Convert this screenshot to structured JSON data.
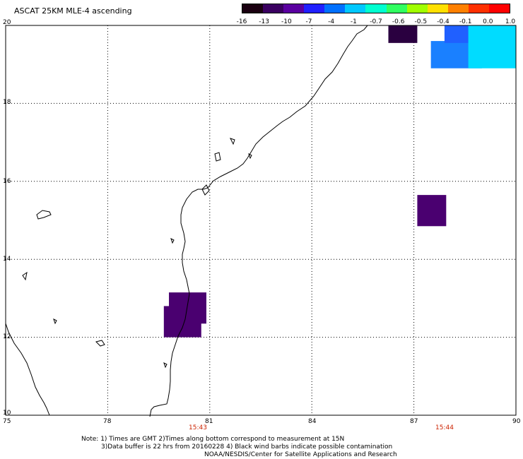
{
  "title": "ASCAT 25KM MLE-4 ascending",
  "colorbar": {
    "labels": [
      "-16",
      "-13",
      "-10",
      "-7",
      "-4",
      "-1",
      "-0.7",
      "-0.6",
      "-0.5",
      "-0.4",
      "-0.1",
      "0.0",
      "1.0"
    ],
    "colors": [
      "#1a0010",
      "#3a0060",
      "#5a00a0",
      "#2020ff",
      "#0070ff",
      "#00c8ff",
      "#00ffd0",
      "#30ff60",
      "#a0ff00",
      "#ffe000",
      "#ff8000",
      "#ff3000",
      "#ff0000"
    ]
  },
  "y_axis": {
    "labels": [
      "20",
      "18",
      "16",
      "14",
      "12",
      "10"
    ]
  },
  "x_axis": {
    "labels": [
      "75",
      "78",
      "81",
      "84",
      "87",
      "90"
    ]
  },
  "pass_times": [
    "15:43",
    "15:44"
  ],
  "note": {
    "line1": "Note: 1) Times are GMT 2)Times along bottom correspond to measurement at 15N",
    "line2": "3)Data buffer is 22 hrs from 20160228 4) Black wind barbs indicate possible contamination",
    "line3": "NOAA/NESDIS/Center for Satellite Applications and Research"
  },
  "data_cells": [
    {
      "name": "purple-patch-north",
      "color": "#2a0040",
      "lon": [
        86.25,
        87.1
      ],
      "lat": [
        19.55,
        20.0
      ]
    },
    {
      "name": "blue-patch-ne-1",
      "color": "#1a80ff",
      "lon": [
        87.5,
        89.0
      ],
      "lat": [
        18.9,
        19.6
      ]
    },
    {
      "name": "blue-patch-ne-2",
      "color": "#2060ff",
      "lon": [
        87.9,
        89.3
      ],
      "lat": [
        19.55,
        20.0
      ]
    },
    {
      "name": "cyan-patch-ne",
      "color": "#00dcff",
      "lon": [
        88.6,
        90.0
      ],
      "lat": [
        18.9,
        20.0
      ]
    },
    {
      "name": "purple-patch-east",
      "color": "#4a0070",
      "lon": [
        87.1,
        87.95
      ],
      "lat": [
        14.85,
        15.65
      ]
    },
    {
      "name": "purple-patch-coast-1",
      "color": "#4a0070",
      "lon": [
        79.8,
        80.9
      ],
      "lat": [
        12.35,
        13.15
      ]
    },
    {
      "name": "purple-patch-coast-2",
      "color": "#4a0070",
      "lon": [
        79.65,
        80.75
      ],
      "lat": [
        12.0,
        12.8
      ]
    }
  ]
}
